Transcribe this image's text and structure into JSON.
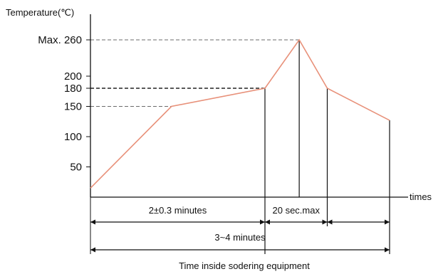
{
  "chart_data": {
    "type": "line",
    "xlabel": "times",
    "ylabel": "Temperature(℃)",
    "caption": "Time inside sodering equipment",
    "y_ticks": [
      {
        "value": 50,
        "label": "50"
      },
      {
        "value": 100,
        "label": "100"
      },
      {
        "value": 150,
        "label": "150"
      },
      {
        "value": 180,
        "label": "180"
      },
      {
        "value": 200,
        "label": "200"
      },
      {
        "value": 260,
        "label": "Max. 260"
      }
    ],
    "series": [
      {
        "color": "#e8917a",
        "points": [
          {
            "x": 0,
            "y": 15
          },
          {
            "x": 2.6,
            "y": 150
          },
          {
            "x": 5.6,
            "y": 180
          },
          {
            "x": 6.7,
            "y": 260
          },
          {
            "x": 7.6,
            "y": 180
          },
          {
            "x": 9.6,
            "y": 127
          }
        ]
      }
    ],
    "reference_lines": [
      {
        "y": 260,
        "to_x": 6.7,
        "style": "dashed"
      },
      {
        "y": 180,
        "to_x": 5.6,
        "style": "dashed-bold"
      },
      {
        "y": 150,
        "to_x": 2.6,
        "style": "dashed"
      }
    ],
    "vertical_markers": [
      0,
      5.6,
      6.7,
      7.6,
      9.6
    ],
    "annotations": [
      {
        "label": "2±0.3 minutes",
        "from_x": 0,
        "to_x": 5.6,
        "row": 1
      },
      {
        "label": "20 sec.max",
        "from_x": 5.6,
        "to_x": 7.6,
        "row": 1
      },
      {
        "label": "",
        "from_x": 7.6,
        "to_x": 9.6,
        "row": 1
      },
      {
        "label": "3~4 minutes",
        "from_x": 0,
        "to_x": 9.6,
        "row": 2
      }
    ],
    "xlim": [
      0,
      10.9
    ],
    "ylim": [
      0,
      275
    ],
    "colors": {
      "curve": "#e8917a",
      "axis": "#111111",
      "dash": "#6b6b6b"
    }
  }
}
